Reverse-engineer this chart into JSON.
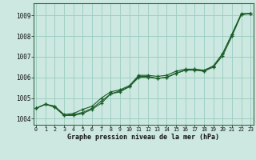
{
  "title": "Graphe pression niveau de la mer (hPa)",
  "xlabel_ticks": [
    0,
    1,
    2,
    3,
    4,
    5,
    6,
    7,
    8,
    9,
    10,
    11,
    12,
    13,
    14,
    15,
    16,
    17,
    18,
    19,
    20,
    21,
    22,
    23
  ],
  "ylim": [
    1003.7,
    1009.6
  ],
  "xlim": [
    -0.3,
    23.3
  ],
  "yticks": [
    1004,
    1005,
    1006,
    1007,
    1008,
    1009
  ],
  "bg_color": "#cce8e0",
  "grid_color": "#99ccc0",
  "line_color": "#1a5c28",
  "line1": [
    1004.5,
    1004.7,
    1004.6,
    1004.15,
    1004.2,
    1004.3,
    1004.5,
    1004.85,
    1005.2,
    1005.3,
    1005.55,
    1006.05,
    1006.05,
    1005.95,
    1006.0,
    1006.2,
    1006.35,
    1006.4,
    1006.3,
    1006.55,
    1007.15,
    1008.1,
    1009.05,
    1009.1
  ],
  "line2": [
    1004.5,
    1004.7,
    1004.6,
    1004.2,
    1004.25,
    1004.45,
    1004.6,
    1005.0,
    1005.3,
    1005.4,
    1005.6,
    1006.1,
    1006.1,
    1006.05,
    1006.1,
    1006.3,
    1006.4,
    1006.4,
    1006.35,
    1006.55,
    1007.15,
    1008.1,
    1009.1,
    1009.1
  ],
  "line3": [
    1004.5,
    1004.7,
    1004.55,
    1004.15,
    1004.15,
    1004.25,
    1004.45,
    1004.75,
    1005.2,
    1005.35,
    1005.55,
    1006.0,
    1006.0,
    1005.95,
    1006.0,
    1006.2,
    1006.35,
    1006.35,
    1006.3,
    1006.5,
    1007.05,
    1008.0,
    1009.05,
    1009.1
  ]
}
